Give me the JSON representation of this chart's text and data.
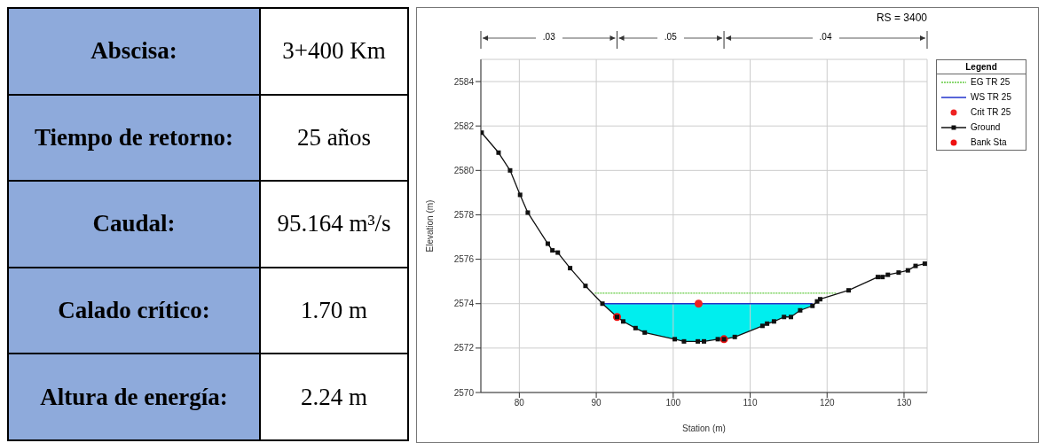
{
  "chart_data": [
    {
      "type": "other",
      "annotations": [
        "Abscisa:",
        "3+400 Km",
        "Tiempo de retorno:",
        "25 años",
        "Caudal:",
        "95.164 m³/s",
        "Calado crítico:",
        "1.70 m",
        "Altura de energía:",
        "2.24 m"
      ]
    },
    {
      "type": "line",
      "title": "RS = 3400",
      "xlabel": "Station (m)",
      "ylabel": "Elevation (m)",
      "legend_title": "Legend",
      "annotations": [
        ".03",
        ".05",
        ".04"
      ],
      "xlim": [
        75,
        133
      ],
      "ylim": [
        2570,
        2585
      ],
      "xticks": [
        80,
        90,
        100,
        110,
        120,
        130
      ],
      "yticks": [
        2570,
        2572,
        2574,
        2576,
        2578,
        2580,
        2582,
        2584
      ],
      "grid": true,
      "legend": "right",
      "series": [
        {
          "name": "EG TR 25",
          "type": "line",
          "line_style": "dashed",
          "marker": "none",
          "color": "#66cc44",
          "x": [
            89.8,
            121.2
          ],
          "values": [
            2574.47,
            2574.47
          ]
        },
        {
          "name": "WS TR 25",
          "type": "line",
          "marker": "none",
          "color": "#2233cc",
          "x": [
            90.8,
            118.1
          ],
          "values": [
            2574.0,
            2574.0
          ]
        },
        {
          "name": "Crit TR 25",
          "type": "scatter",
          "marker": "circle",
          "color": "#ee2222",
          "x": [
            103.3
          ],
          "values": [
            2574.0
          ]
        },
        {
          "name": "Ground",
          "type": "line",
          "marker": "square",
          "color": "#111111",
          "x": [
            75.1,
            77.3,
            78.8,
            80.1,
            81.1,
            83.7,
            84.3,
            85.0,
            86.6,
            88.6,
            90.8,
            92.7,
            93.5,
            95.1,
            96.3,
            100.2,
            101.4,
            103.2,
            104.0,
            105.8,
            106.6,
            108.0,
            111.6,
            112.2,
            113.1,
            114.4,
            115.3,
            116.5,
            118.1,
            118.7,
            119.1,
            122.8,
            126.6,
            127.2,
            127.9,
            129.3,
            130.5,
            131.5,
            132.7
          ],
          "values": [
            2581.7,
            2580.8,
            2580.0,
            2578.9,
            2578.1,
            2576.7,
            2576.4,
            2576.3,
            2575.6,
            2574.8,
            2574.0,
            2573.4,
            2573.2,
            2572.9,
            2572.7,
            2572.4,
            2572.3,
            2572.3,
            2572.3,
            2572.4,
            2572.4,
            2572.5,
            2573.0,
            2573.1,
            2573.2,
            2573.4,
            2573.4,
            2573.7,
            2573.9,
            2574.1,
            2574.2,
            2574.6,
            2575.2,
            2575.2,
            2575.3,
            2575.4,
            2575.5,
            2575.7,
            2575.8
          ]
        },
        {
          "name": "Bank Sta",
          "type": "scatter",
          "marker": "circle",
          "color": "#ee1111",
          "x": [
            92.7,
            106.6
          ],
          "values": [
            2573.4,
            2572.4
          ]
        }
      ]
    }
  ]
}
